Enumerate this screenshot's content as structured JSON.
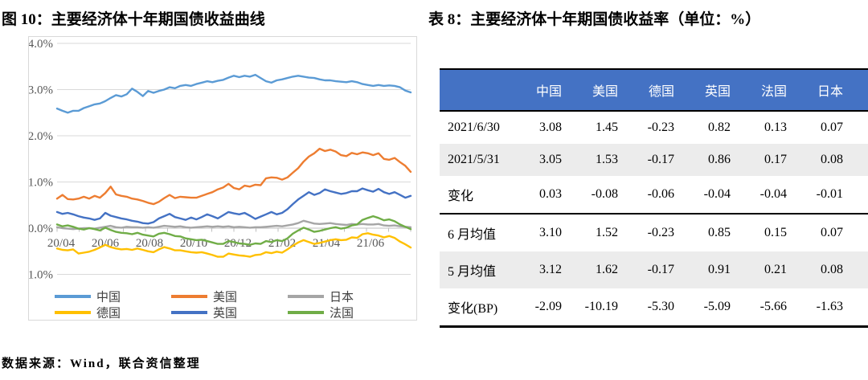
{
  "page": {
    "figure_title": "图 10：主要经济体十年期国债收益曲线",
    "table_title": "表 8：主要经济体十年期国债收益率（单位：%）",
    "source_note": "数据来源：Wind，联合资信整理"
  },
  "table": {
    "header": [
      "",
      "中国",
      "美国",
      "德国",
      "英国",
      "法国",
      "日本"
    ],
    "header_bg": "#4472C4",
    "header_text_color": "#FFFFFF",
    "shade_bg": "#ECECEC",
    "rows": [
      {
        "label": "2021/6/30",
        "values": [
          "3.08",
          "1.45",
          "-0.23",
          "0.82",
          "0.13",
          "0.07"
        ],
        "shaded": false,
        "divider_below": false
      },
      {
        "label": "2021/5/31",
        "values": [
          "3.05",
          "1.53",
          "-0.17",
          "0.86",
          "0.17",
          "0.08"
        ],
        "shaded": true,
        "divider_below": false
      },
      {
        "label": "变化",
        "values": [
          "0.03",
          "-0.08",
          "-0.06",
          "-0.04",
          "-0.04",
          "-0.01"
        ],
        "shaded": false,
        "divider_below": true
      },
      {
        "label": "6 月均值",
        "values": [
          "3.10",
          "1.52",
          "-0.23",
          "0.85",
          "0.15",
          "0.07"
        ],
        "shaded": false,
        "divider_below": false
      },
      {
        "label": "5 月均值",
        "values": [
          "3.12",
          "1.62",
          "-0.17",
          "0.91",
          "0.21",
          "0.08"
        ],
        "shaded": true,
        "divider_below": false
      },
      {
        "label": "变化(BP)",
        "values": [
          "-2.09",
          "-10.19",
          "-5.30",
          "-5.09",
          "-5.66",
          "-1.63"
        ],
        "shaded": false,
        "divider_below": false
      }
    ]
  },
  "chart_data": {
    "type": "line",
    "title": "主要经济体十年期国债收益曲线",
    "x_tick_labels": [
      "20/04",
      "20/06",
      "20/08",
      "20/10",
      "20/12",
      "21/02",
      "21/04",
      "21/06"
    ],
    "y_tick_labels": [
      "4.0%",
      "3.0%",
      "2.0%",
      "1.0%",
      "0.0%",
      "-1.0%"
    ],
    "y_ticks": [
      4,
      3,
      2,
      1,
      0,
      -1
    ],
    "ylim": [
      -1.0,
      4.0
    ],
    "grid": "horizontal",
    "legend_position": "bottom",
    "legend_order": [
      "中国",
      "美国",
      "日本",
      "德国",
      "英国",
      "法国"
    ],
    "series": [
      {
        "name": "中国",
        "key": "china",
        "color": "#5B9BD5",
        "values": [
          2.59,
          2.54,
          2.5,
          2.54,
          2.54,
          2.6,
          2.64,
          2.68,
          2.7,
          2.75,
          2.82,
          2.88,
          2.85,
          2.9,
          3.02,
          2.95,
          2.86,
          2.97,
          2.93,
          2.97,
          3.0,
          3.05,
          3.03,
          3.08,
          3.1,
          3.08,
          3.12,
          3.15,
          3.18,
          3.16,
          3.19,
          3.21,
          3.26,
          3.3,
          3.27,
          3.3,
          3.28,
          3.32,
          3.25,
          3.18,
          3.15,
          3.2,
          3.22,
          3.25,
          3.28,
          3.3,
          3.28,
          3.26,
          3.25,
          3.22,
          3.2,
          3.2,
          3.18,
          3.17,
          3.16,
          3.18,
          3.16,
          3.12,
          3.1,
          3.08,
          3.1,
          3.08,
          3.09,
          3.08,
          3.05,
          2.98,
          2.94
        ]
      },
      {
        "name": "美国",
        "key": "us",
        "color": "#ED7D31",
        "values": [
          0.64,
          0.72,
          0.63,
          0.62,
          0.64,
          0.68,
          0.64,
          0.7,
          0.66,
          0.76,
          0.9,
          0.73,
          0.7,
          0.68,
          0.64,
          0.62,
          0.59,
          0.55,
          0.52,
          0.57,
          0.65,
          0.72,
          0.65,
          0.68,
          0.67,
          0.66,
          0.66,
          0.7,
          0.74,
          0.78,
          0.84,
          0.88,
          0.96,
          0.87,
          0.84,
          0.92,
          0.9,
          0.94,
          0.93,
          1.08,
          1.1,
          1.09,
          1.05,
          1.1,
          1.2,
          1.3,
          1.44,
          1.55,
          1.62,
          1.72,
          1.67,
          1.7,
          1.66,
          1.58,
          1.56,
          1.63,
          1.6,
          1.64,
          1.62,
          1.58,
          1.62,
          1.5,
          1.48,
          1.52,
          1.43,
          1.35,
          1.22
        ]
      },
      {
        "name": "日本",
        "key": "japan",
        "color": "#A5A5A5",
        "values": [
          0.02,
          0.0,
          -0.01,
          -0.02,
          -0.01,
          0.0,
          0.0,
          -0.01,
          0.01,
          0.03,
          0.05,
          0.02,
          0.01,
          0.03,
          0.02,
          0.02,
          0.01,
          0.02,
          0.01,
          0.03,
          0.05,
          0.04,
          0.03,
          0.04,
          0.02,
          0.01,
          0.02,
          0.03,
          0.04,
          0.03,
          0.04,
          0.03,
          0.04,
          0.02,
          0.03,
          0.02,
          0.01,
          0.02,
          0.02,
          0.03,
          0.04,
          0.05,
          0.04,
          0.06,
          0.08,
          0.11,
          0.16,
          0.13,
          0.1,
          0.09,
          0.1,
          0.11,
          0.09,
          0.08,
          0.07,
          0.09,
          0.08,
          0.09,
          0.08,
          0.08,
          0.09,
          0.06,
          0.05,
          0.06,
          0.04,
          0.03,
          0.02
        ]
      },
      {
        "name": "德国",
        "key": "germany",
        "color": "#FFC000",
        "values": [
          -0.44,
          -0.47,
          -0.48,
          -0.46,
          -0.55,
          -0.53,
          -0.51,
          -0.47,
          -0.42,
          -0.36,
          -0.41,
          -0.44,
          -0.46,
          -0.45,
          -0.47,
          -0.44,
          -0.47,
          -0.5,
          -0.52,
          -0.46,
          -0.41,
          -0.44,
          -0.48,
          -0.48,
          -0.5,
          -0.52,
          -0.53,
          -0.52,
          -0.55,
          -0.58,
          -0.62,
          -0.62,
          -0.55,
          -0.57,
          -0.59,
          -0.6,
          -0.62,
          -0.58,
          -0.57,
          -0.52,
          -0.54,
          -0.51,
          -0.53,
          -0.46,
          -0.38,
          -0.31,
          -0.26,
          -0.3,
          -0.34,
          -0.32,
          -0.29,
          -0.26,
          -0.24,
          -0.26,
          -0.25,
          -0.2,
          -0.21,
          -0.13,
          -0.11,
          -0.14,
          -0.16,
          -0.2,
          -0.17,
          -0.21,
          -0.29,
          -0.35,
          -0.42
        ]
      },
      {
        "name": "英国",
        "key": "uk",
        "color": "#4472C4",
        "values": [
          0.35,
          0.31,
          0.33,
          0.3,
          0.26,
          0.23,
          0.21,
          0.18,
          0.21,
          0.33,
          0.27,
          0.24,
          0.21,
          0.19,
          0.16,
          0.14,
          0.11,
          0.1,
          0.13,
          0.21,
          0.26,
          0.31,
          0.24,
          0.21,
          0.18,
          0.23,
          0.19,
          0.24,
          0.3,
          0.26,
          0.21,
          0.28,
          0.35,
          0.32,
          0.3,
          0.33,
          0.27,
          0.2,
          0.25,
          0.3,
          0.35,
          0.3,
          0.33,
          0.41,
          0.52,
          0.62,
          0.7,
          0.78,
          0.72,
          0.76,
          0.84,
          0.8,
          0.77,
          0.74,
          0.76,
          0.8,
          0.8,
          0.86,
          0.82,
          0.79,
          0.85,
          0.78,
          0.74,
          0.78,
          0.72,
          0.66,
          0.7
        ]
      },
      {
        "name": "法国",
        "key": "france",
        "color": "#70AD47",
        "values": [
          0.08,
          0.04,
          0.06,
          0.03,
          -0.01,
          -0.03,
          0.0,
          -0.02,
          -0.05,
          0.01,
          -0.04,
          -0.08,
          -0.1,
          -0.11,
          -0.13,
          -0.1,
          -0.14,
          -0.16,
          -0.18,
          -0.12,
          -0.1,
          -0.13,
          -0.17,
          -0.18,
          -0.22,
          -0.24,
          -0.26,
          -0.25,
          -0.28,
          -0.31,
          -0.34,
          -0.34,
          -0.28,
          -0.3,
          -0.33,
          -0.34,
          -0.36,
          -0.33,
          -0.34,
          -0.28,
          -0.3,
          -0.26,
          -0.28,
          -0.22,
          -0.12,
          -0.05,
          0.01,
          -0.03,
          -0.08,
          -0.06,
          -0.03,
          0.0,
          0.02,
          -0.01,
          0.01,
          0.06,
          0.08,
          0.18,
          0.22,
          0.26,
          0.22,
          0.17,
          0.19,
          0.15,
          0.08,
          0.03,
          -0.02
        ]
      }
    ]
  }
}
